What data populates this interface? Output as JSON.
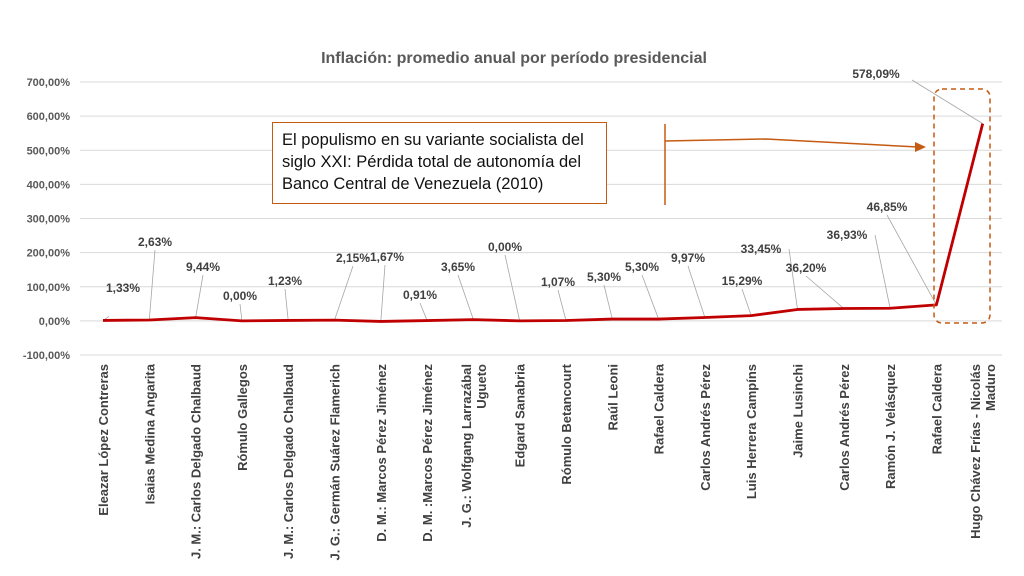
{
  "chart_data": {
    "type": "line",
    "title": "Inflación: promedio anual por período presidencial",
    "categories": [
      [
        "Eleazar López Contreras"
      ],
      [
        "Isaias Medina Angarita"
      ],
      [
        "J. M.: Carlos Delgado Chalbaud"
      ],
      [
        "Rómulo Gallegos"
      ],
      [
        "J. M.: Carlos Delgado Chalbaud"
      ],
      [
        "J. G.: Germán Suárez Flamerich"
      ],
      [
        "D. M.: Marcos Pérez Jiménez"
      ],
      [
        "D. M. :Marcos Pérez Jiménez"
      ],
      [
        "J. G.: Wolfgang Larrazábal",
        "Ugueto"
      ],
      [
        "Edgard Sanabria"
      ],
      [
        "Rómulo Betancourt"
      ],
      [
        "Raúl Leoni"
      ],
      [
        "Rafael Caldera"
      ],
      [
        "Carlos Andrés Pérez"
      ],
      [
        "Luis Herrera Campíns"
      ],
      [
        "Jaime Lusinchi"
      ],
      [
        "Carlos Andrés Pérez"
      ],
      [
        "Ramón J. Velásquez"
      ],
      [
        "Rafael Caldera"
      ],
      [
        "Hugo Chávez Frías - Nicolás",
        "Maduro"
      ]
    ],
    "values": [
      1.33,
      2.63,
      9.44,
      0.0,
      1.23,
      2.15,
      -1.67,
      0.91,
      3.65,
      0.0,
      1.07,
      5.3,
      5.3,
      9.97,
      15.29,
      33.45,
      36.2,
      36.93,
      46.85,
      578.09
    ],
    "data_labels": [
      "1,33%",
      "2,63%",
      "9,44%",
      "0,00%",
      "1,23%",
      "2,15%",
      "-1,67%",
      "0,91%",
      "3,65%",
      "0,00%",
      "1,07%",
      "5,30%",
      "5,30%",
      "9,97%",
      "15,29%",
      "33,45%",
      "36,20%",
      "36,93%",
      "46,85%",
      "578,09%"
    ],
    "ylim": [
      -100,
      700
    ],
    "y_ticks": [
      -100,
      0,
      100,
      200,
      300,
      400,
      500,
      600,
      700
    ],
    "y_tick_labels": [
      "-100,00%",
      "0,00%",
      "100,00%",
      "200,00%",
      "300,00%",
      "400,00%",
      "500,00%",
      "600,00%",
      "700,00%"
    ],
    "grid": true,
    "legend": "none",
    "line_color": "#c00000",
    "annotation_color": "#c55a11"
  },
  "annotation": {
    "text_lines": [
      "El populismo en su variante socialista del",
      "siglo XXI: Pérdida total de autonomía del",
      "Banco Central de Venezuela (2010)"
    ]
  }
}
